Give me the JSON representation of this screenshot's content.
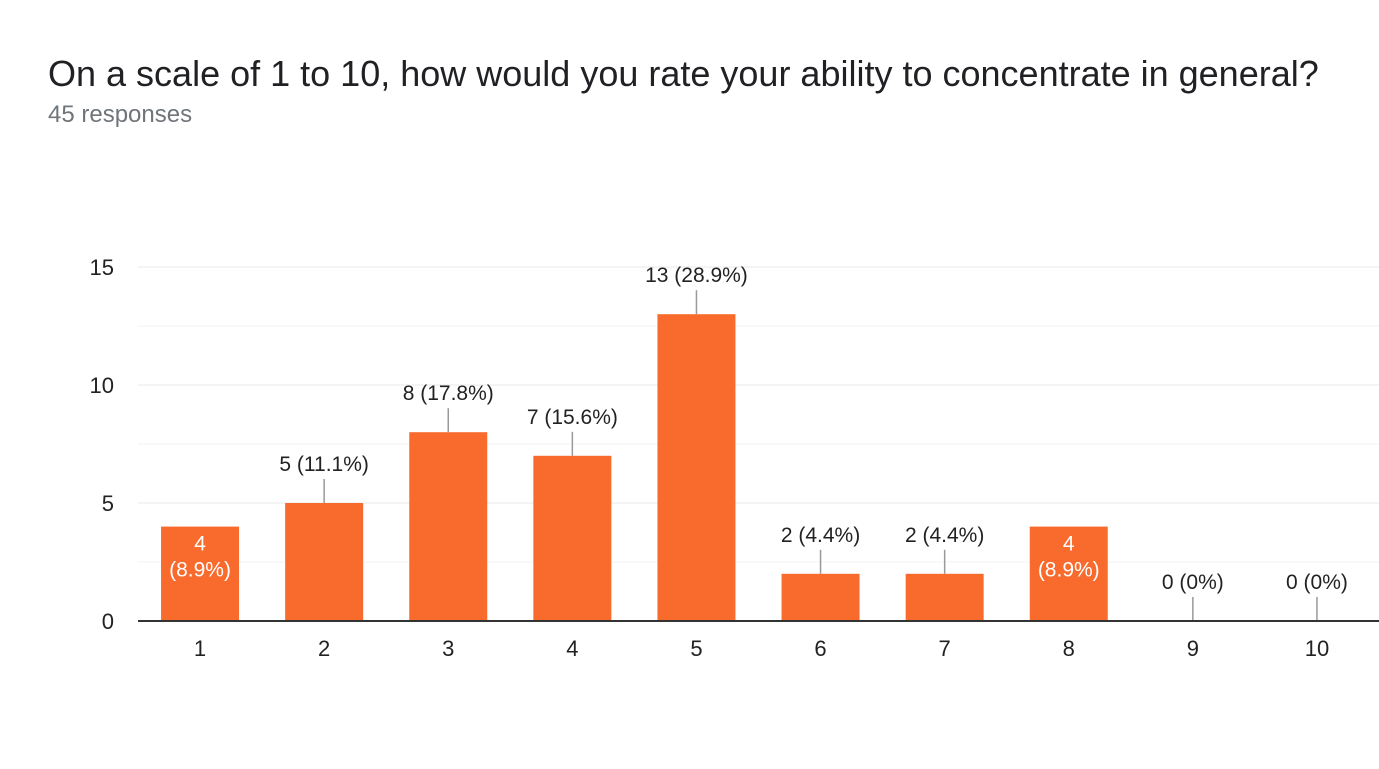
{
  "question": {
    "title": "On a scale of 1 to 10, how would you rate your ability to concentrate in general?",
    "response_count": "45 responses"
  },
  "colors": {
    "bar": "#f96a2d",
    "grid": "#e8e8e8",
    "axis": "#333333",
    "label": "#222222",
    "inside_label": "#ffffff"
  },
  "chart_data": {
    "type": "bar",
    "categories": [
      "1",
      "2",
      "3",
      "4",
      "5",
      "6",
      "7",
      "8",
      "9",
      "10"
    ],
    "values": [
      4,
      5,
      8,
      7,
      13,
      2,
      2,
      4,
      0,
      0
    ],
    "percent_labels": [
      "(8.9%)",
      "(11.1%)",
      "(17.8%)",
      "(15.6%)",
      "(28.9%)",
      "(4.4%)",
      "(4.4%)",
      "(8.9%)",
      "(0%)",
      "(0%)"
    ],
    "inside_label_categories": [
      "1",
      "8"
    ],
    "ylim": [
      0,
      15
    ],
    "yticks": [
      0,
      5,
      10,
      15
    ],
    "minor_gridlines": [
      2.5,
      7.5,
      12.5
    ],
    "grid": true,
    "title": "",
    "xlabel": "",
    "ylabel": ""
  }
}
